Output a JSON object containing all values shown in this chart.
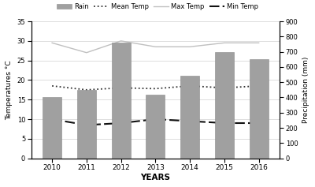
{
  "years": [
    2010,
    2011,
    2012,
    2013,
    2014,
    2015,
    2016
  ],
  "rain_mm": [
    400,
    450,
    760,
    420,
    545,
    700,
    650
  ],
  "mean_temp": [
    18.5,
    17.5,
    18.0,
    17.8,
    18.5,
    18.0,
    18.5
  ],
  "max_temp": [
    29.5,
    27.0,
    30.0,
    28.5,
    28.5,
    29.5,
    29.5
  ],
  "min_temp": [
    10.0,
    8.5,
    9.0,
    10.0,
    9.5,
    9.0,
    9.0
  ],
  "bar_color": "#a0a0a0",
  "bar_edge_color": "#888888",
  "mean_temp_color": "#333333",
  "max_temp_color": "#c0c0c0",
  "min_temp_color": "#111111",
  "left_ylim": [
    0,
    35
  ],
  "right_ylim": [
    0,
    900
  ],
  "left_yticks": [
    0,
    5,
    10,
    15,
    20,
    25,
    30,
    35
  ],
  "right_yticks": [
    0,
    100,
    200,
    300,
    400,
    500,
    600,
    700,
    800,
    900
  ],
  "xlabel": "YEARS",
  "ylabel_left": "Temperatures °C",
  "ylabel_right": "Precipitation (mm)",
  "legend_labels": [
    "Rain",
    "Mean Temp",
    "Max Temp",
    "Min Temp"
  ],
  "bg_color": "#ffffff",
  "grid_color": "#d0d0d0"
}
